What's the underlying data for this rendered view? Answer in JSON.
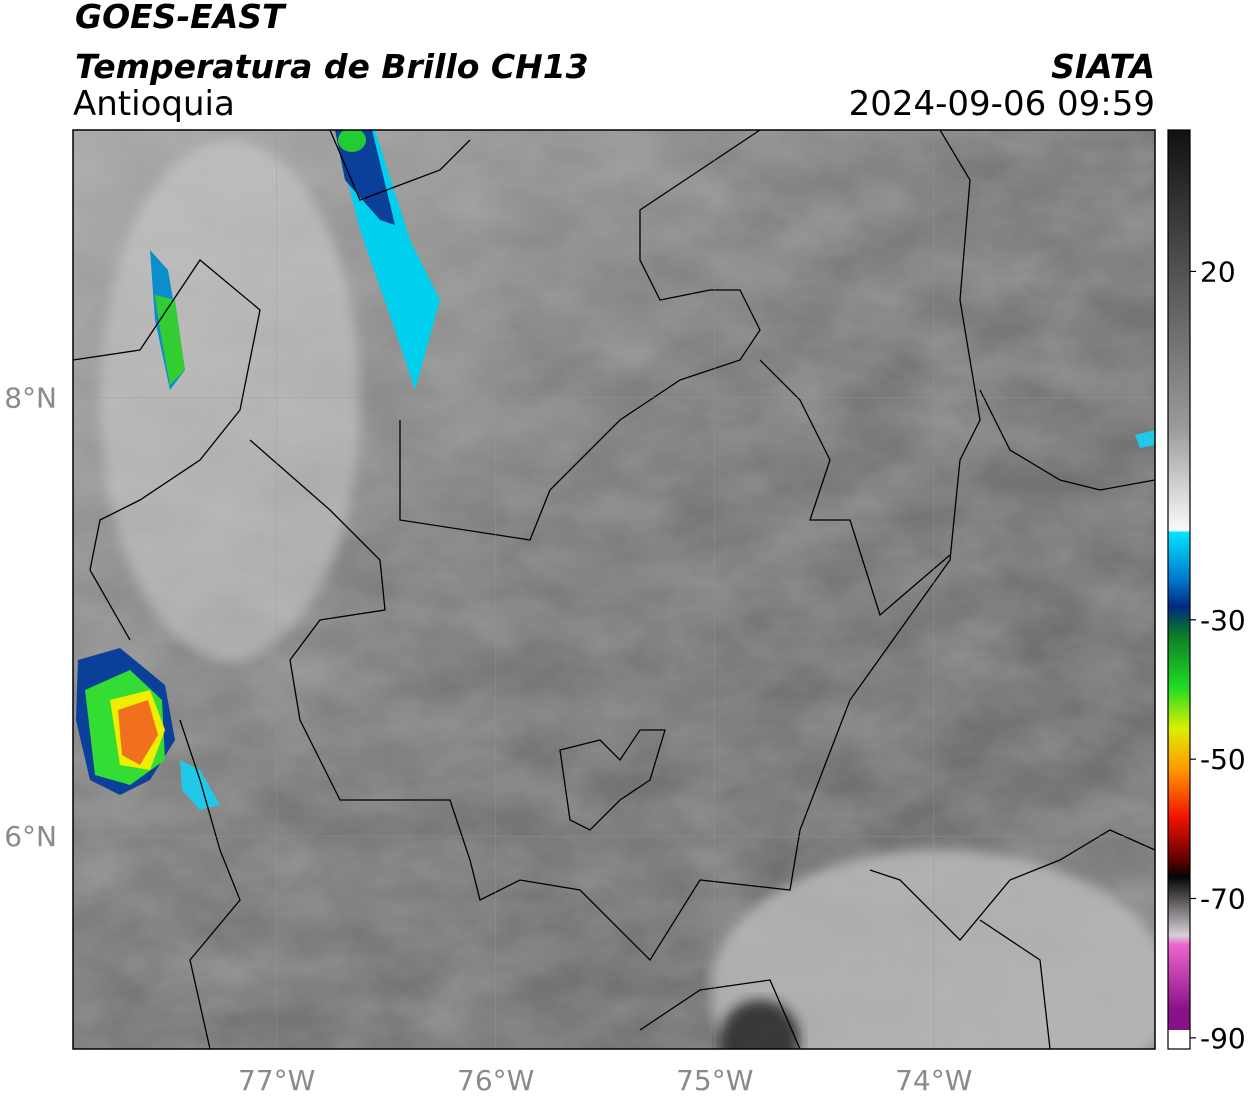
{
  "header": {
    "satellite": "GOES-EAST",
    "product": "Temperatura de Brillo CH13",
    "region": "Antioquia",
    "source": "SIATA",
    "datetime": "2024-09-06 09:59"
  },
  "map": {
    "xlim": [
      -77.93,
      -72.99
    ],
    "ylim": [
      5.03,
      9.22
    ],
    "xticks": [
      {
        "value": -77,
        "label": "77°W"
      },
      {
        "value": -76,
        "label": "76°W"
      },
      {
        "value": -75,
        "label": "75°W"
      },
      {
        "value": -74,
        "label": "74°W"
      }
    ],
    "yticks": [
      {
        "value": 8,
        "label": "8°N"
      },
      {
        "value": 6,
        "label": "6°N"
      }
    ],
    "grid": true
  },
  "colorbar": {
    "lim": [
      40.3,
      -91.6
    ],
    "ticks": [
      20,
      -30,
      -50,
      -70,
      -90
    ]
  }
}
